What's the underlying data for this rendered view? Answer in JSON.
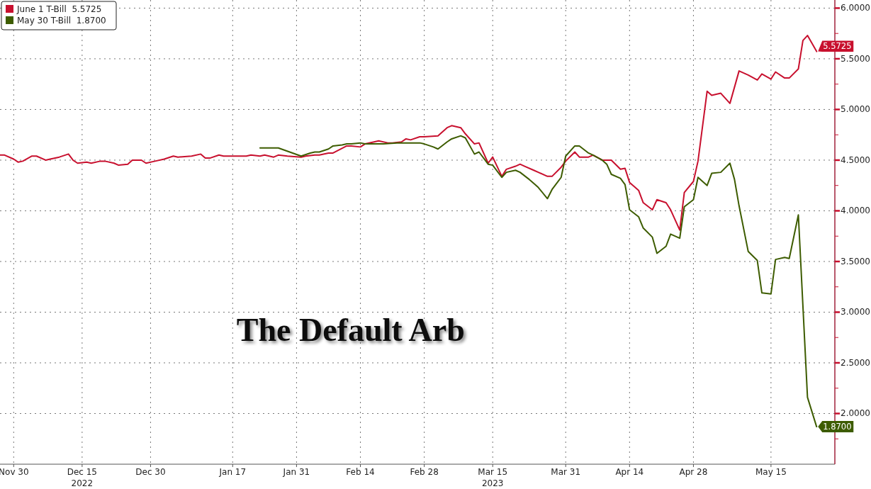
{
  "chart_data": {
    "type": "line",
    "legend": "top left",
    "grid": true,
    "line_style": "solid",
    "marker": "none",
    "xlim": [
      "2022-11-27",
      "2023-05-29"
    ],
    "xticks": [
      {
        "value": "2022-11-30",
        "label": "Nov 30"
      },
      {
        "value": "2022-12-15",
        "label": "Dec 15\n2022"
      },
      {
        "value": "2022-12-30",
        "label": "Dec 30"
      },
      {
        "value": "2023-01-17",
        "label": "Jan 17"
      },
      {
        "value": "2023-01-31",
        "label": "Jan 31"
      },
      {
        "value": "2023-02-14",
        "label": "Feb 14"
      },
      {
        "value": "2023-02-28",
        "label": "Feb 28"
      },
      {
        "value": "2023-03-15",
        "label": "Mar 15\n2023"
      },
      {
        "value": "2023-03-31",
        "label": "Mar 31"
      },
      {
        "value": "2023-04-14",
        "label": "Apr 14"
      },
      {
        "value": "2023-04-28",
        "label": "Apr 28"
      },
      {
        "value": "2023-05-15",
        "label": "May 15"
      }
    ],
    "ylim": [
      1.5,
      6.08
    ],
    "yticks": [
      {
        "value": 1.75,
        "label": null
      },
      {
        "value": 2,
        "label": "2.0000"
      },
      {
        "value": 2.25,
        "label": null
      },
      {
        "value": 2.5,
        "label": "2.5000"
      },
      {
        "value": 2.75,
        "label": null
      },
      {
        "value": 3,
        "label": "3.0000"
      },
      {
        "value": 3.25,
        "label": null
      },
      {
        "value": 3.5,
        "label": "3.5000"
      },
      {
        "value": 3.75,
        "label": null
      },
      {
        "value": 4,
        "label": "4.0000"
      },
      {
        "value": 4.25,
        "label": null
      },
      {
        "value": 4.5,
        "label": "4.5000"
      },
      {
        "value": 4.75,
        "label": null
      },
      {
        "value": 5,
        "label": "5.0000"
      },
      {
        "value": 5.25,
        "label": null
      },
      {
        "value": 5.5,
        "label": "5.5000"
      },
      {
        "value": 5.75,
        "label": null
      },
      {
        "value": 6,
        "label": "6.0000"
      }
    ],
    "annotations": [
      "The Default Arb",
      {
        "text": "5.5725",
        "x": "2023-05-25",
        "y": 5.5725
      },
      {
        "text": "1.8700",
        "x": "2023-05-25",
        "y": 1.87
      }
    ],
    "series": [
      {
        "name": "June 1 T-Bill  5.5725",
        "color": "#c8102e",
        "x": [
          "2022-11-27",
          "2022-11-28",
          "2022-11-30",
          "2022-12-01",
          "2022-12-02",
          "2022-12-04",
          "2022-12-05",
          "2022-12-07",
          "2022-12-08",
          "2022-12-10",
          "2022-12-12",
          "2022-12-13",
          "2022-12-14",
          "2022-12-16",
          "2022-12-17",
          "2022-12-19",
          "2022-12-20",
          "2022-12-22",
          "2022-12-23",
          "2022-12-25",
          "2022-12-26",
          "2022-12-28",
          "2022-12-29",
          "2022-12-31",
          "2023-01-02",
          "2023-01-04",
          "2023-01-05",
          "2023-01-08",
          "2023-01-10",
          "2023-01-11",
          "2023-01-12",
          "2023-01-14",
          "2023-01-15",
          "2023-01-20",
          "2023-01-21",
          "2023-01-23",
          "2023-01-24",
          "2023-01-26",
          "2023-01-27",
          "2023-01-29",
          "2023-02-01",
          "2023-02-02",
          "2023-02-04",
          "2023-02-05",
          "2023-02-07",
          "2023-02-08",
          "2023-02-11",
          "2023-02-12",
          "2023-02-14",
          "2023-02-15",
          "2023-02-17",
          "2023-02-18",
          "2023-02-20",
          "2023-02-21",
          "2023-02-23",
          "2023-02-24",
          "2023-02-25",
          "2023-02-27",
          "2023-02-28",
          "2023-03-03",
          "2023-03-05",
          "2023-03-06",
          "2023-03-08",
          "2023-03-09",
          "2023-03-11",
          "2023-03-12",
          "2023-03-14",
          "2023-03-15",
          "2023-03-17",
          "2023-03-18",
          "2023-03-20",
          "2023-03-21",
          "2023-03-22",
          "2023-03-24",
          "2023-03-25",
          "2023-03-27",
          "2023-03-28",
          "2023-03-30",
          "2023-03-31",
          "2023-04-02",
          "2023-04-03",
          "2023-04-05",
          "2023-04-06",
          "2023-04-08",
          "2023-04-10",
          "2023-04-12",
          "2023-04-13",
          "2023-04-14",
          "2023-04-16",
          "2023-04-17",
          "2023-04-19",
          "2023-04-20",
          "2023-04-22",
          "2023-04-23",
          "2023-04-25",
          "2023-04-26",
          "2023-04-28",
          "2023-04-29",
          "2023-05-01",
          "2023-05-02",
          "2023-05-04",
          "2023-05-06",
          "2023-05-08",
          "2023-05-10",
          "2023-05-12",
          "2023-05-13",
          "2023-05-15",
          "2023-05-16",
          "2023-05-18",
          "2023-05-19",
          "2023-05-21",
          "2023-05-22",
          "2023-05-23",
          "2023-05-25"
        ],
        "values": [
          4.55,
          4.55,
          4.51,
          4.48,
          4.49,
          4.54,
          4.54,
          4.5,
          4.51,
          4.53,
          4.56,
          4.5,
          4.47,
          4.48,
          4.47,
          4.49,
          4.49,
          4.47,
          4.45,
          4.46,
          4.5,
          4.5,
          4.47,
          4.49,
          4.51,
          4.54,
          4.53,
          4.54,
          4.56,
          4.52,
          4.52,
          4.55,
          4.54,
          4.54,
          4.55,
          4.54,
          4.55,
          4.53,
          4.55,
          4.54,
          4.53,
          4.54,
          4.55,
          4.55,
          4.57,
          4.57,
          4.64,
          4.64,
          4.63,
          4.66,
          4.68,
          4.69,
          4.67,
          4.67,
          4.68,
          4.71,
          4.7,
          4.73,
          4.73,
          4.74,
          4.82,
          4.84,
          4.82,
          4.76,
          4.66,
          4.67,
          4.47,
          4.53,
          4.34,
          4.41,
          4.44,
          4.46,
          4.44,
          4.4,
          4.38,
          4.34,
          4.34,
          4.43,
          4.49,
          4.58,
          4.53,
          4.53,
          4.55,
          4.5,
          4.5,
          4.41,
          4.42,
          4.28,
          4.2,
          4.08,
          4.01,
          4.11,
          4.08,
          4.01,
          3.81,
          4.18,
          4.29,
          4.49,
          5.18,
          5.14,
          5.16,
          5.06,
          5.38,
          5.34,
          5.29,
          5.35,
          5.3,
          5.37,
          5.31,
          5.31,
          5.4,
          5.68,
          5.73,
          5.5725
        ]
      },
      {
        "name": "May 30 T-Bill  1.8700",
        "color": "#3d5c00",
        "x": [
          "2023-01-23",
          "2023-01-27",
          "2023-02-01",
          "2023-02-03",
          "2023-02-04",
          "2023-02-05",
          "2023-02-07",
          "2023-02-08",
          "2023-02-10",
          "2023-02-11",
          "2023-02-12",
          "2023-02-14",
          "2023-02-15",
          "2023-02-17",
          "2023-02-19",
          "2023-02-22",
          "2023-02-24",
          "2023-02-27",
          "2023-02-28",
          "2023-03-02",
          "2023-03-03",
          "2023-03-05",
          "2023-03-06",
          "2023-03-08",
          "2023-03-09",
          "2023-03-11",
          "2023-03-12",
          "2023-03-14",
          "2023-03-15",
          "2023-03-17",
          "2023-03-18",
          "2023-03-20",
          "2023-03-21",
          "2023-03-23",
          "2023-03-24",
          "2023-03-25",
          "2023-03-27",
          "2023-03-28",
          "2023-03-30",
          "2023-03-31",
          "2023-04-02",
          "2023-04-03",
          "2023-04-05",
          "2023-04-06",
          "2023-04-08",
          "2023-04-09",
          "2023-04-10",
          "2023-04-12",
          "2023-04-13",
          "2023-04-14",
          "2023-04-16",
          "2023-04-17",
          "2023-04-19",
          "2023-04-20",
          "2023-04-22",
          "2023-04-23",
          "2023-04-25",
          "2023-04-26",
          "2023-04-28",
          "2023-04-29",
          "2023-05-01",
          "2023-05-02",
          "2023-05-04",
          "2023-05-06",
          "2023-05-07",
          "2023-05-08",
          "2023-05-10",
          "2023-05-12",
          "2023-05-13",
          "2023-05-15",
          "2023-05-16",
          "2023-05-18",
          "2023-05-19",
          "2023-05-21",
          "2023-05-23",
          "2023-05-25"
        ],
        "values": [
          4.62,
          4.62,
          4.54,
          4.57,
          4.58,
          4.58,
          4.61,
          4.64,
          4.65,
          4.66,
          4.66,
          4.67,
          4.66,
          4.66,
          4.66,
          4.67,
          4.67,
          4.67,
          4.66,
          4.63,
          4.61,
          4.68,
          4.71,
          4.74,
          4.72,
          4.56,
          4.58,
          4.46,
          4.45,
          4.33,
          4.38,
          4.4,
          4.38,
          4.31,
          4.27,
          4.23,
          4.12,
          4.21,
          4.33,
          4.54,
          4.64,
          4.64,
          4.57,
          4.55,
          4.5,
          4.46,
          4.36,
          4.32,
          4.26,
          4.01,
          3.94,
          3.83,
          3.74,
          3.58,
          3.65,
          3.77,
          3.73,
          4.04,
          4.11,
          4.33,
          4.25,
          4.37,
          4.38,
          4.47,
          4.31,
          4.05,
          3.6,
          3.51,
          3.19,
          3.18,
          3.52,
          3.54,
          3.53,
          3.96,
          2.16,
          1.87
        ]
      }
    ]
  }
}
